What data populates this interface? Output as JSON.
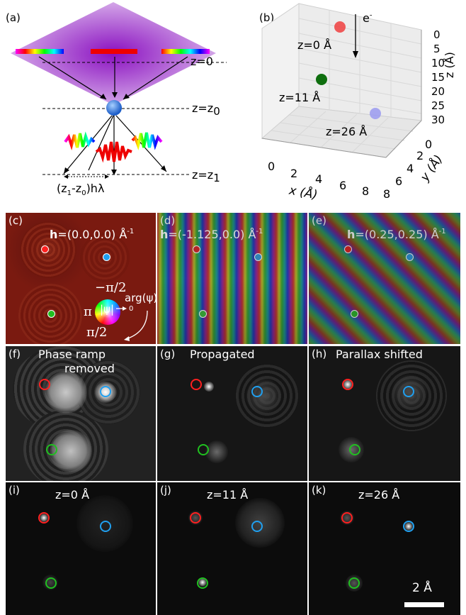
{
  "panel_a": {
    "label": "(a)",
    "z0": "z=0",
    "zz0": "z=z",
    "zz0_sub": "0",
    "zz1": "z=z",
    "zz1_sub": "1",
    "bottom_label": "(z",
    "bottom_label_sub1": "1",
    "bottom_label_mid": "-z",
    "bottom_label_sub2": "0",
    "bottom_label_end": ")hλ"
  },
  "panel_b": {
    "label": "(b)",
    "electron": "e",
    "electron_sup": "-",
    "layer_labels": [
      "z=0 Å",
      "z=11 Å",
      "z=26 Å"
    ],
    "z_ticks": [
      "0",
      "5",
      "10",
      "15",
      "20",
      "25",
      "30"
    ],
    "z_axis_label": "z (Å)",
    "x_ticks": [
      "0",
      "2",
      "4",
      "6",
      "8"
    ],
    "x_axis_label": "x (Å)",
    "y_ticks": [
      "0",
      "2",
      "4",
      "6",
      "8"
    ],
    "y_axis_label": "y (Å)",
    "atom_colors": [
      "#f04040",
      "#0e6e0e",
      "#9a9af0"
    ]
  },
  "panel_c": {
    "label": "(c)",
    "h_bold": "h",
    "h_value": "=(0.0,0.0) Å",
    "h_sup": "-1"
  },
  "panel_d": {
    "label": "(d)",
    "h_bold": "h",
    "h_value": "=(-1.125,0.0) Å",
    "h_sup": "-1"
  },
  "panel_e": {
    "label": "(e)",
    "h_bold": "h",
    "h_value": "=(0.25,0.25) Å",
    "h_sup": "-1"
  },
  "legend": {
    "top": "−π/2",
    "left": "π",
    "bottom": "π/2",
    "modulus": "|ψ|",
    "arg": "arg(ψ)",
    "zero": "0"
  },
  "panel_f": {
    "label": "(f)",
    "title_line1": "Phase ramp",
    "title_line2": "removed"
  },
  "panel_g": {
    "label": "(g)",
    "title": "Propagated"
  },
  "panel_h": {
    "label": "(h)",
    "title": "Parallax shifted"
  },
  "panel_i": {
    "label": "(i)",
    "title": "z=0 Å"
  },
  "panel_j": {
    "label": "(j)",
    "title": "z=11 Å"
  },
  "panel_k": {
    "label": "(k)",
    "title": "z=26 Å"
  },
  "scale_bar": {
    "label": "2 Å"
  },
  "colors": {
    "red_marker": "#ff2020",
    "blue_marker": "#20a0f0",
    "green_marker": "#20c020",
    "panel_c_bg": "#7a1a10"
  }
}
